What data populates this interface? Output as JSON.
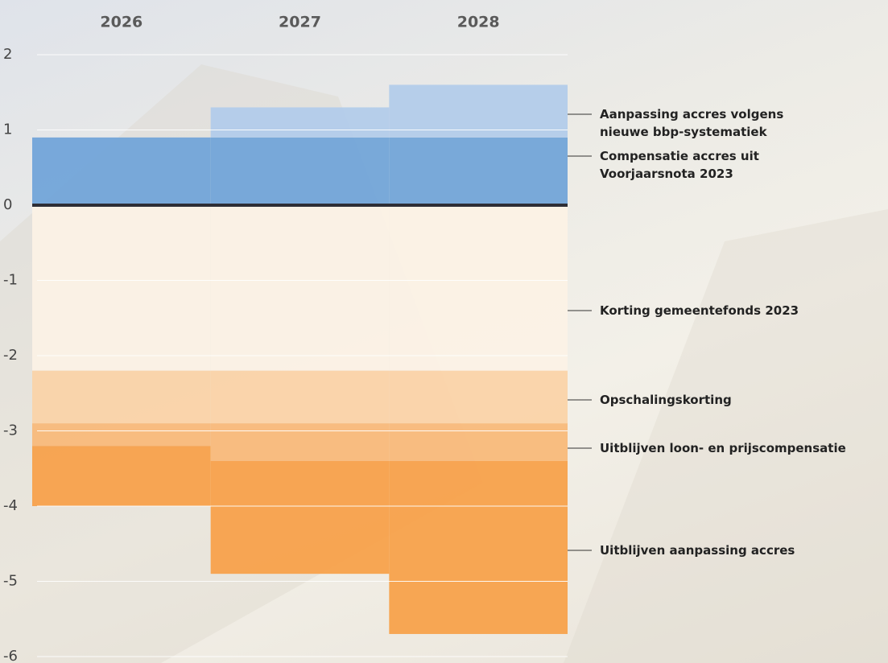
{
  "chart_data": {
    "type": "bar",
    "stacked": true,
    "categories": [
      "2026",
      "2027",
      "2028"
    ],
    "series": [
      {
        "name": "Compensatie accres uit Voorjaarsnota 2023",
        "color": "#6fa3d8",
        "values": [
          0.9,
          0.9,
          0.9
        ]
      },
      {
        "name": "Aanpassing accres volgens nieuwe bbp-systematiek",
        "color": "#b1cbea",
        "values": [
          0,
          0.4,
          0.7
        ]
      },
      {
        "name": "Korting gemeentefonds 2023",
        "color": "#fcf2e5",
        "values": [
          -2.2,
          -2.2,
          -2.2
        ]
      },
      {
        "name": "Opschalingskorting",
        "color": "#fbd3a6",
        "values": [
          -0.7,
          -0.7,
          -0.7
        ]
      },
      {
        "name": "Uitblijven loon- en prijscompensatie",
        "color": "#f9b877",
        "values": [
          -0.3,
          -0.5,
          -0.5
        ]
      },
      {
        "name": "Uitblijven aanpassing accres",
        "color": "#f7a046",
        "values": [
          -0.8,
          -1.5,
          -2.3
        ]
      }
    ],
    "ylim": [
      -6,
      2
    ],
    "yticks": [
      -6,
      -5,
      -4,
      -3,
      -2,
      -1,
      0,
      1,
      2
    ],
    "grid": true
  }
}
